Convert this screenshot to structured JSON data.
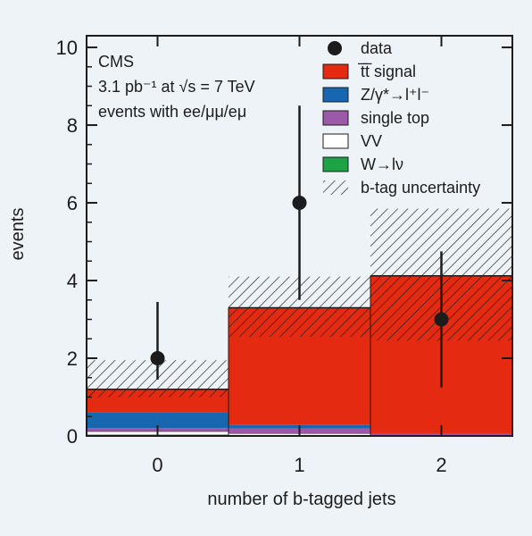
{
  "colors": {
    "background": "#eef3f8",
    "signal": "#e52a12",
    "zgamma": "#1766b0",
    "single_top": "#9b59a8",
    "vv": "#ffffff",
    "wlnu": "#1da344",
    "data": "#1c1c1c",
    "frame": "#1c1c1c"
  },
  "chart_data": {
    "type": "bar",
    "stacked": true,
    "xlabel": "number of b-tagged jets",
    "ylabel": "events",
    "categories": [
      "0",
      "1",
      "2"
    ],
    "xlim": [
      -0.5,
      2.5
    ],
    "ylim": [
      0,
      10.3
    ],
    "yticks": [
      0,
      2,
      4,
      6,
      8,
      10
    ],
    "annotations": [
      "CMS",
      "3.1 pb⁻¹ at √s = 7 TeV",
      "events with ee/μμ/eμ"
    ],
    "legend_position": "top-right",
    "legend": [
      {
        "label": "data",
        "kind": "marker"
      },
      {
        "label": "t̅t̅ signal",
        "kind": "signal"
      },
      {
        "label": "Z/γ*→l⁺l⁻",
        "kind": "zgamma"
      },
      {
        "label": "single top",
        "kind": "single_top"
      },
      {
        "label": "VV",
        "kind": "vv"
      },
      {
        "label": "W→lν",
        "kind": "wlnu"
      },
      {
        "label": "b-tag uncertainty",
        "kind": "hatch"
      }
    ],
    "series": [
      {
        "key": "wlnu",
        "values": [
          0.02,
          0.0,
          0.0
        ]
      },
      {
        "key": "vv",
        "values": [
          0.1,
          0.07,
          0.02
        ]
      },
      {
        "key": "single_top",
        "values": [
          0.08,
          0.12,
          0.03
        ]
      },
      {
        "key": "zgamma",
        "values": [
          0.4,
          0.09,
          0.02
        ]
      },
      {
        "key": "signal",
        "values": [
          0.6,
          3.02,
          4.05
        ]
      }
    ],
    "totals": [
      1.2,
      3.3,
      4.12
    ],
    "uncertainty_band": {
      "low": [
        1.0,
        2.55,
        2.45
      ],
      "high": [
        1.95,
        4.1,
        5.85
      ]
    },
    "data_points": [
      {
        "x": 0,
        "y": 2,
        "err_low": 1.45,
        "err_high": 3.45
      },
      {
        "x": 1,
        "y": 6,
        "err_low": 3.5,
        "err_high": 8.5
      },
      {
        "x": 2,
        "y": 3,
        "err_low": 1.25,
        "err_high": 4.75
      }
    ]
  }
}
